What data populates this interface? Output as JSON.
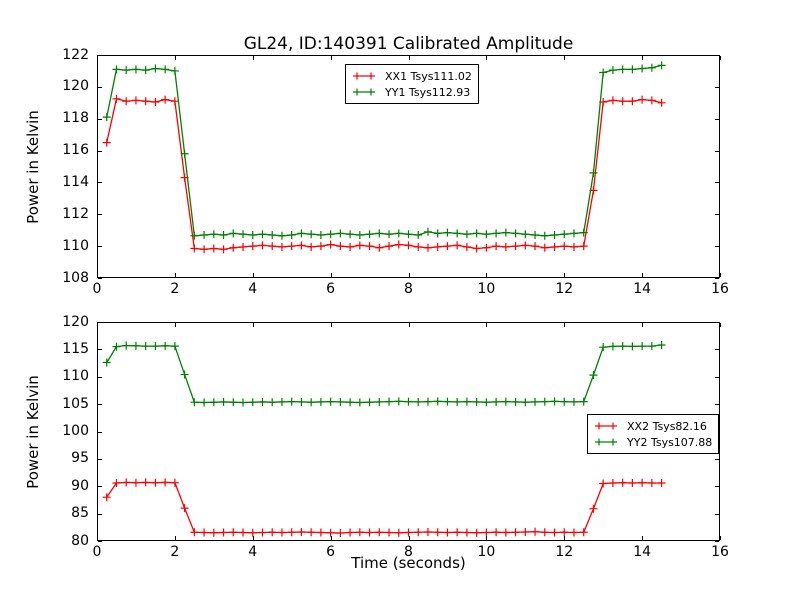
{
  "figure": {
    "title": "GL24, ID:140391 Calibrated Amplitude",
    "background_color": "#ffffff",
    "axis_color": "#000000"
  },
  "chart_data": [
    {
      "type": "line",
      "title": "GL24, ID:140391 Calibrated Amplitude",
      "xlabel": "",
      "ylabel": "Power in Kelvin",
      "xlim": [
        0,
        16
      ],
      "ylim": [
        108,
        122
      ],
      "xticks": [
        0,
        2,
        4,
        6,
        8,
        10,
        12,
        14,
        16
      ],
      "yticks": [
        108,
        110,
        112,
        114,
        116,
        118,
        120,
        122
      ],
      "grid": false,
      "marker": "+",
      "legend_position": "upper center",
      "x": [
        0.25,
        0.5,
        0.75,
        1,
        1.25,
        1.5,
        1.75,
        2,
        2.25,
        2.5,
        2.75,
        3,
        3.25,
        3.5,
        3.75,
        4,
        4.25,
        4.5,
        4.75,
        5,
        5.25,
        5.5,
        5.75,
        6,
        6.25,
        6.5,
        6.75,
        7,
        7.25,
        7.5,
        7.75,
        8,
        8.25,
        8.5,
        8.75,
        9,
        9.25,
        9.5,
        9.75,
        10,
        10.25,
        10.5,
        10.75,
        11,
        11.25,
        11.5,
        11.75,
        12,
        12.25,
        12.5,
        12.75,
        13,
        13.25,
        13.5,
        13.75,
        14,
        14.25,
        14.5
      ],
      "series": [
        {
          "name": "XX1 Tsys111.02",
          "color": "#ff0000",
          "values": [
            116.5,
            119.25,
            119.1,
            119.15,
            119.1,
            119.05,
            119.2,
            119.1,
            114.3,
            109.85,
            109.8,
            109.85,
            109.8,
            109.9,
            109.95,
            110.0,
            110.05,
            110.0,
            109.95,
            110.0,
            110.05,
            109.95,
            110.0,
            110.1,
            110.0,
            109.95,
            110.05,
            110.0,
            109.9,
            110.0,
            110.1,
            110.05,
            109.95,
            109.9,
            109.95,
            110.0,
            110.05,
            109.95,
            109.85,
            109.9,
            110.0,
            109.95,
            110.0,
            110.05,
            110.0,
            109.9,
            109.95,
            110.0,
            109.95,
            110.0,
            113.5,
            119.05,
            119.15,
            119.1,
            119.1,
            119.2,
            119.15,
            119.0
          ]
        },
        {
          "name": "YY1 Tsys112.93",
          "color": "#008000",
          "values": [
            118.1,
            121.1,
            121.05,
            121.1,
            121.05,
            121.15,
            121.1,
            121.0,
            115.8,
            110.65,
            110.7,
            110.75,
            110.7,
            110.8,
            110.75,
            110.7,
            110.75,
            110.7,
            110.65,
            110.7,
            110.8,
            110.75,
            110.7,
            110.75,
            110.8,
            110.75,
            110.7,
            110.75,
            110.8,
            110.75,
            110.8,
            110.75,
            110.7,
            110.9,
            110.8,
            110.85,
            110.8,
            110.75,
            110.8,
            110.75,
            110.8,
            110.85,
            110.8,
            110.75,
            110.7,
            110.65,
            110.7,
            110.75,
            110.8,
            110.85,
            114.6,
            120.9,
            121.05,
            121.1,
            121.1,
            121.15,
            121.2,
            121.35
          ]
        }
      ]
    },
    {
      "type": "line",
      "title": "",
      "xlabel": "Time (seconds)",
      "ylabel": "Power in Kelvin",
      "xlim": [
        0,
        16
      ],
      "ylim": [
        80,
        120
      ],
      "xticks": [
        0,
        2,
        4,
        6,
        8,
        10,
        12,
        14,
        16
      ],
      "yticks": [
        80,
        85,
        90,
        95,
        100,
        105,
        110,
        115,
        120
      ],
      "grid": false,
      "marker": "+",
      "legend_position": "center right",
      "x": [
        0.25,
        0.5,
        0.75,
        1,
        1.25,
        1.5,
        1.75,
        2,
        2.25,
        2.5,
        2.75,
        3,
        3.25,
        3.5,
        3.75,
        4,
        4.25,
        4.5,
        4.75,
        5,
        5.25,
        5.5,
        5.75,
        6,
        6.25,
        6.5,
        6.75,
        7,
        7.25,
        7.5,
        7.75,
        8,
        8.25,
        8.5,
        8.75,
        9,
        9.25,
        9.5,
        9.75,
        10,
        10.25,
        10.5,
        10.75,
        11,
        11.25,
        11.5,
        11.75,
        12,
        12.25,
        12.5,
        12.75,
        13,
        13.25,
        13.5,
        13.75,
        14,
        14.25,
        14.5
      ],
      "series": [
        {
          "name": "XX2 Tsys82.16",
          "color": "#ff0000",
          "values": [
            88.0,
            90.6,
            90.7,
            90.65,
            90.7,
            90.65,
            90.7,
            90.65,
            86.0,
            81.6,
            81.55,
            81.5,
            81.55,
            81.6,
            81.55,
            81.5,
            81.55,
            81.6,
            81.55,
            81.6,
            81.65,
            81.6,
            81.55,
            81.5,
            81.45,
            81.55,
            81.6,
            81.55,
            81.6,
            81.55,
            81.5,
            81.55,
            81.6,
            81.65,
            81.6,
            81.55,
            81.6,
            81.55,
            81.5,
            81.55,
            81.6,
            81.55,
            81.6,
            81.65,
            81.7,
            81.6,
            81.55,
            81.6,
            81.55,
            81.6,
            85.9,
            90.5,
            90.6,
            90.65,
            90.6,
            90.65,
            90.6,
            90.6
          ]
        },
        {
          "name": "YY2 Tsys107.88",
          "color": "#008000",
          "values": [
            112.6,
            115.5,
            115.7,
            115.65,
            115.6,
            115.6,
            115.65,
            115.6,
            110.4,
            105.35,
            105.3,
            105.35,
            105.4,
            105.35,
            105.3,
            105.35,
            105.4,
            105.35,
            105.4,
            105.45,
            105.4,
            105.35,
            105.4,
            105.45,
            105.4,
            105.35,
            105.3,
            105.35,
            105.4,
            105.45,
            105.5,
            105.45,
            105.4,
            105.45,
            105.5,
            105.45,
            105.4,
            105.45,
            105.4,
            105.35,
            105.4,
            105.45,
            105.4,
            105.35,
            105.4,
            105.45,
            105.5,
            105.45,
            105.4,
            105.45,
            110.3,
            115.4,
            115.55,
            115.6,
            115.55,
            115.6,
            115.6,
            115.8
          ]
        }
      ]
    }
  ]
}
